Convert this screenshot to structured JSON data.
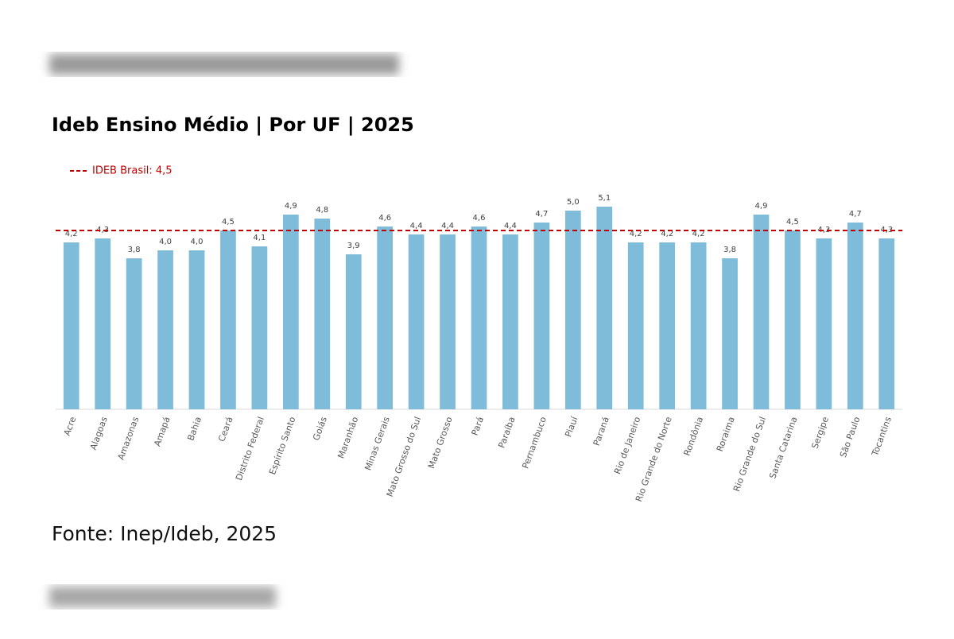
{
  "chart_data": {
    "type": "bar",
    "title": "Ideb Ensino Médio | Por UF | 2025",
    "source": "Fonte: Inep/Ideb, 2025",
    "categories": [
      "Acre",
      "Alagoas",
      "Amazonas",
      "Amapá",
      "Bahia",
      "Ceará",
      "Distrito Federal",
      "Espírito Santo",
      "Goiás",
      "Maranhão",
      "Minas Gerais",
      "Mato Grosso do Sul",
      "Mato Grosso",
      "Pará",
      "Paraíba",
      "Pernambuco",
      "Piauí",
      "Paraná",
      "Rio de Janeiro",
      "Rio Grande do Norte",
      "Rondônia",
      "Roraima",
      "Rio Grande do Sul",
      "Santa Catarina",
      "Sergipe",
      "São Paulo",
      "Tocantins"
    ],
    "values": [
      4.2,
      4.3,
      3.8,
      4.0,
      4.0,
      4.5,
      4.1,
      4.9,
      4.8,
      3.9,
      4.6,
      4.4,
      4.4,
      4.6,
      4.4,
      4.7,
      5.0,
      5.1,
      4.2,
      4.2,
      4.2,
      3.8,
      4.9,
      4.5,
      4.3,
      4.7,
      4.3
    ],
    "value_labels": [
      "4,2",
      "4,3",
      "3,8",
      "4,0",
      "4,0",
      "4,5",
      "4,1",
      "4,9",
      "4,8",
      "3,9",
      "4,6",
      "4,4",
      "4,4",
      "4,6",
      "4,4",
      "4,7",
      "5,0",
      "5,1",
      "4,2",
      "4,2",
      "4,2",
      "3,8",
      "4,9",
      "4,5",
      "4,3",
      "4,7",
      "4,3"
    ],
    "color": "#7fbcd9",
    "ylim": [
      0,
      5.1
    ],
    "reference_line": {
      "label": "IDEB Brasil: 4,5",
      "value": 4.5,
      "color": "#c00000"
    }
  }
}
